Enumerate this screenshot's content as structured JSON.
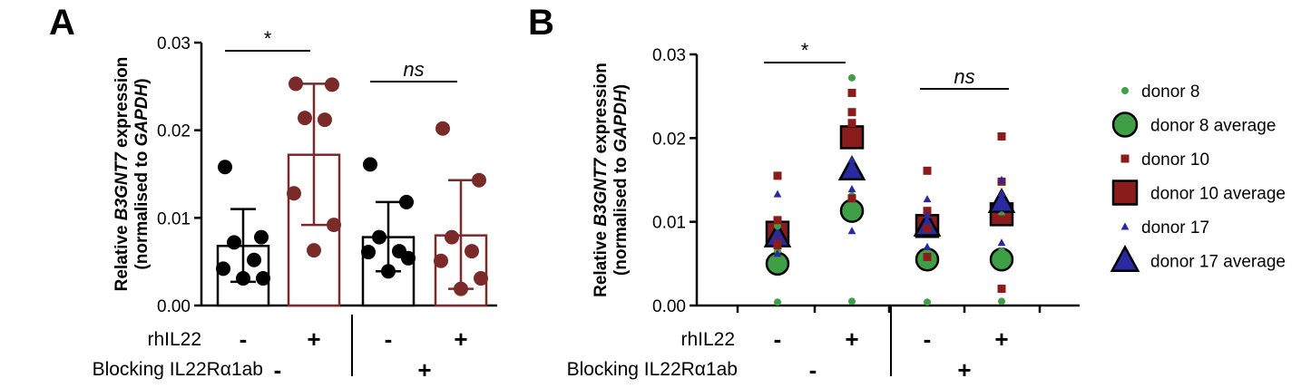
{
  "chart_data": [
    {
      "panel": "A",
      "type": "bar",
      "ylabel_line1_prefix": "Relative ",
      "ylabel_line1_gene": "B3GNT7",
      "ylabel_line1_suffix": " expression",
      "ylabel_line2_prefix": "(normalised to ",
      "ylabel_line2_gene": "GAPDH",
      "ylabel_line2_suffix": ")",
      "ylim": [
        0,
        0.03
      ],
      "yticks": [
        "0.00",
        "0.01",
        "0.02",
        "0.03"
      ],
      "ytick_values": [
        0,
        0.01,
        0.02,
        0.03
      ],
      "groups": [
        {
          "rhIL22": "-",
          "blocking": "-",
          "mean": 0.0068,
          "sd_low": 0.0027,
          "sd_high": 0.011,
          "color": "#000000",
          "points": [
            0.0158,
            0.0078,
            0.0072,
            0.0052,
            0.0042,
            0.0031,
            0.0031
          ]
        },
        {
          "rhIL22": "+",
          "blocking": "-",
          "mean": 0.0172,
          "sd_low": 0.0092,
          "sd_high": 0.0253,
          "color": "#7b2a2a",
          "points": [
            0.0253,
            0.0252,
            0.0214,
            0.0212,
            0.0128,
            0.0092,
            0.0063
          ]
        },
        {
          "rhIL22": "-",
          "blocking": "+",
          "mean": 0.0078,
          "sd_low": 0.0039,
          "sd_high": 0.0118,
          "color": "#000000",
          "points": [
            0.0161,
            0.0118,
            0.0078,
            0.0062,
            0.0061,
            0.0054,
            0.0039
          ]
        },
        {
          "rhIL22": "+",
          "blocking": "+",
          "mean": 0.008,
          "sd_low": 0.0019,
          "sd_high": 0.0143,
          "color": "#7b2a2a",
          "points": [
            0.0202,
            0.0143,
            0.0078,
            0.0062,
            0.0051,
            0.0031,
            0.0019
          ]
        }
      ],
      "significance": [
        {
          "from": 0,
          "to": 1,
          "label": "*"
        },
        {
          "from": 2,
          "to": 3,
          "label": "ns"
        }
      ]
    },
    {
      "panel": "B",
      "type": "scatter",
      "ylabel_line1_prefix": "Relative ",
      "ylabel_line1_gene": "B3GNT7",
      "ylabel_line1_suffix": " expression",
      "ylabel_line2_prefix": "(normalised to ",
      "ylabel_line2_gene": "GAPDH",
      "ylabel_line2_suffix": ")",
      "ylim": [
        0,
        0.03
      ],
      "yticks": [
        "0.00",
        "0.01",
        "0.02",
        "0.03"
      ],
      "ytick_values": [
        0,
        0.01,
        0.02,
        0.03
      ],
      "conditions": [
        {
          "rhIL22": "-",
          "blocking": "-"
        },
        {
          "rhIL22": "+",
          "blocking": "-"
        },
        {
          "rhIL22": "-",
          "blocking": "+"
        },
        {
          "rhIL22": "+",
          "blocking": "+"
        }
      ],
      "series": [
        {
          "name": "donor 8",
          "marker": "circle",
          "color": "#3f9f46",
          "points": [
            [
              0.0095,
              0.0065,
              0.0004
            ],
            [
              0.0272,
              0.0131,
              0.0005
            ],
            [
              0.0112,
              0.0052,
              0.0004
            ],
            [
              0.0108,
              0.0065,
              0.0005
            ]
          ]
        },
        {
          "name": "donor 10",
          "marker": "square",
          "color": "#8b1c1c",
          "points": [
            [
              0.0155,
              0.0102,
              0.0078,
              0.0072
            ],
            [
              0.0254,
              0.0231,
              0.0218,
              0.0128
            ],
            [
              0.0161,
              0.0113,
              0.0092,
              0.0058
            ],
            [
              0.0202,
              0.0148,
              0.0103,
              0.002
            ]
          ]
        },
        {
          "name": "donor 17",
          "marker": "triangle",
          "color": "#2a2aa0",
          "points": [
            [
              0.0133,
              0.0082,
              0.0062
            ],
            [
              0.0174,
              0.0139,
              0.0089
            ],
            [
              0.0127,
              0.0108,
              0.007
            ],
            [
              0.015,
              0.0134,
              0.0075
            ]
          ]
        }
      ],
      "averages": [
        {
          "name": "donor 8 average",
          "marker": "circle",
          "color": "#3f9f46",
          "values": [
            0.005,
            0.0113,
            0.0055,
            0.0055
          ]
        },
        {
          "name": "donor 10 average",
          "marker": "square",
          "color": "#8b1c1c",
          "values": [
            0.0087,
            0.0201,
            0.0095,
            0.0109
          ]
        },
        {
          "name": "donor 17 average",
          "marker": "triangle",
          "color": "#2a2aa0",
          "values": [
            0.0082,
            0.0162,
            0.0095,
            0.0123
          ]
        }
      ],
      "significance": [
        {
          "from": 0,
          "to": 1,
          "label": "*"
        },
        {
          "from": 2,
          "to": 3,
          "label": "ns"
        }
      ],
      "legend": [
        "donor 8",
        "donor 8 average",
        "donor 10",
        "donor 10 average",
        "donor 17",
        "donor 17 average"
      ]
    }
  ],
  "labels": {
    "panel_a": "A",
    "panel_b": "B",
    "rhil22": "rhIL22",
    "blocking": "Blocking IL22Rα1ab",
    "minus": "-",
    "plus": "+"
  }
}
